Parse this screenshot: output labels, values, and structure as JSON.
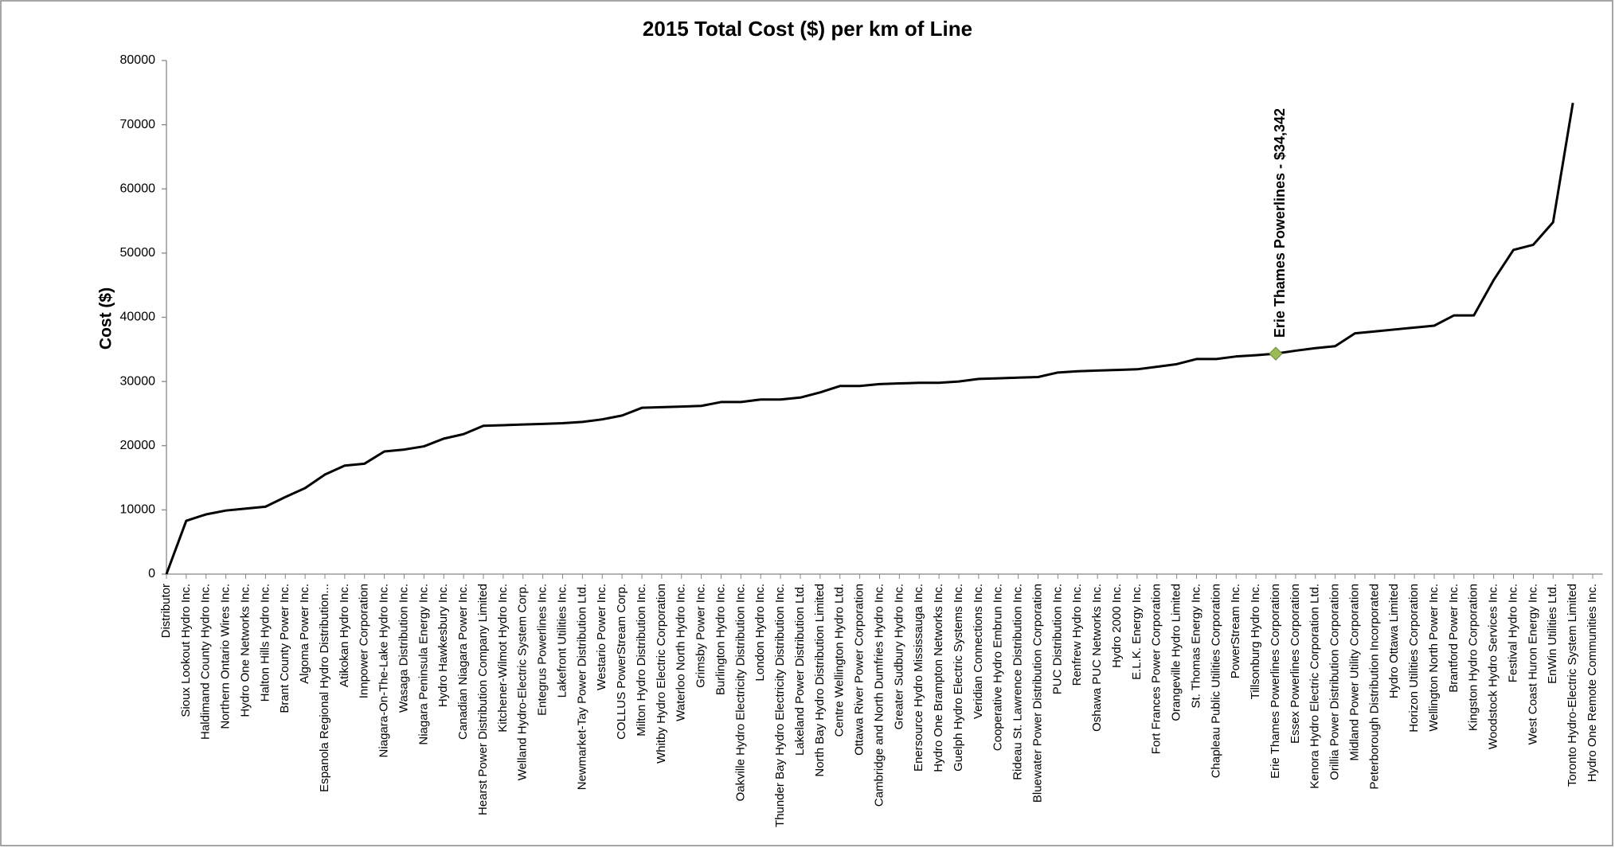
{
  "chart_data": {
    "type": "line",
    "title": "2015 Total Cost ($) per km of Line",
    "y_label": "Cost ($)",
    "categories": [
      "Distributor",
      "Sioux Lookout Hydro Inc.",
      "Haldimand County Hydro Inc.",
      "Northern Ontario Wires Inc.",
      "Hydro One Networks Inc.",
      "Halton Hills Hydro Inc.",
      "Brant County Power Inc.",
      "Algoma Power Inc.",
      "Espanola Regional Hydro Distribution...",
      "Atikokan Hydro Inc.",
      "Innpower Corporation",
      "Niagara-On-The-Lake Hydro Inc.",
      "Wasaga Distribution Inc.",
      "Niagara Peninsula Energy Inc.",
      "Hydro Hawkesbury Inc.",
      "Canadian Niagara Power Inc.",
      "Hearst Power Distribution Company Limited",
      "Kitchener-Wilmot Hydro Inc.",
      "Welland Hydro-Electric System Corp.",
      "Entegrus Powerlines Inc.",
      "Lakefront Utilities Inc.",
      "Newmarket-Tay Power Distribution Ltd.",
      "Westario Power Inc.",
      "COLLUS PowerStream Corp.",
      "Milton Hydro Distribution Inc.",
      "Whitby Hydro Electric Corporation",
      "Waterloo North Hydro Inc.",
      "Grimsby Power Inc.",
      "Burlington Hydro Inc.",
      "Oakville Hydro Electricity Distribution Inc.",
      "London Hydro Inc.",
      "Thunder Bay Hydro Electricity Distribution Inc.",
      "Lakeland Power Distribution Ltd.",
      "North Bay Hydro Distribution Limited",
      "Centre Wellington Hydro Ltd.",
      "Ottawa River Power Corporation",
      "Cambridge and North Dumfries Hydro Inc.",
      "Greater Sudbury Hydro Inc.",
      "Enersource Hydro Mississauga Inc.",
      "Hydro One Brampton Networks Inc.",
      "Guelph Hydro Electric Systems Inc.",
      "Veridian Connections Inc.",
      "Cooperative Hydro Embrun Inc.",
      "Rideau St. Lawrence Distribution Inc.",
      "Bluewater Power Distribution Corporation",
      "PUC Distribution Inc.",
      "Renfrew Hydro Inc.",
      "Oshawa PUC Networks Inc.",
      "Hydro 2000 Inc.",
      "E.L.K. Energy Inc.",
      "Fort Frances Power Corporation",
      "Orangeville Hydro Limited",
      "St. Thomas Energy Inc.",
      "Chapleau Public Utilities Corporation",
      "PowerStream Inc.",
      "Tillsonburg Hydro Inc.",
      "Erie Thames Powerlines Corporation",
      "Essex Powerlines Corporation",
      "Kenora Hydro Electric Corporation Ltd.",
      "Orillia Power Distribution Corporation",
      "Midland Power Utility Corporation",
      "Peterborough Distribution Incorporated",
      "Hydro Ottawa Limited",
      "Horizon Utilities Corporation",
      "Wellington North Power Inc.",
      "Brantford Power Inc.",
      "Kingston Hydro Corporation",
      "Woodstock Hydro Services Inc.",
      "Festival Hydro Inc.",
      "West Coast Huron Energy Inc.",
      "EnWin Utilities Ltd.",
      "Toronto Hydro-Electric System Limited",
      "Hydro One Remote Communities Inc."
    ],
    "values": [
      0,
      8300,
      9300,
      9900,
      10200,
      10500,
      12000,
      13400,
      15500,
      16900,
      17200,
      19100,
      19400,
      19900,
      21100,
      21800,
      23100,
      23200,
      23300,
      23400,
      23500,
      23700,
      24100,
      24700,
      25900,
      26000,
      26100,
      26200,
      26800,
      26800,
      27200,
      27200,
      27500,
      28300,
      29300,
      29300,
      29600,
      29700,
      29800,
      29800,
      30000,
      30400,
      30500,
      30600,
      30700,
      31400,
      31600,
      31700,
      31800,
      31900,
      32300,
      32700,
      33500,
      33500,
      33900,
      34100,
      34342,
      34800,
      35200,
      35500,
      37500,
      37800,
      38100,
      38400,
      38700,
      40300,
      40300,
      45800,
      50500,
      51300,
      54800,
      73400,
      null
    ],
    "color": "#000000",
    "annotation": {
      "text": "Erie Thames Powerlines - $34,342",
      "category": "Erie Thames Powerlines Corporation",
      "marker_color": "#9bbb59"
    },
    "ylim": [
      0,
      80000
    ],
    "yticks": [
      0,
      10000,
      20000,
      30000,
      40000,
      50000,
      60000,
      70000,
      80000
    ],
    "grid": false
  }
}
